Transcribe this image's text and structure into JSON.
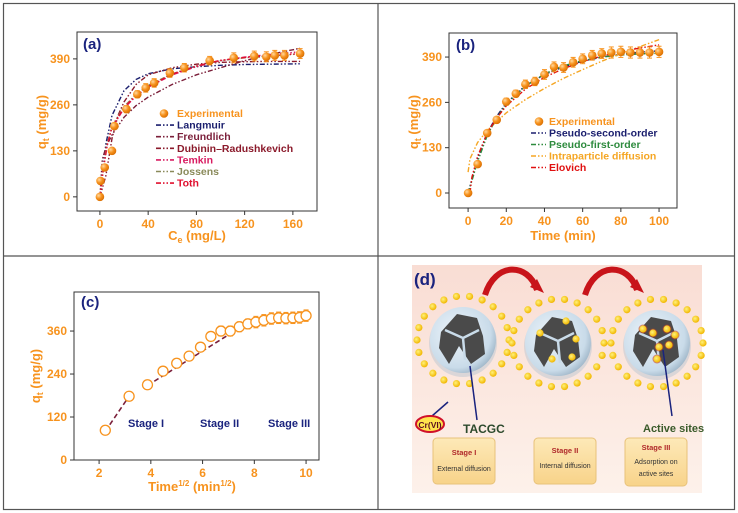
{
  "colors": {
    "orange": "#f7931e",
    "navy": "#1a237e"
  },
  "chart_data": [
    {
      "panel": "(a)",
      "type": "scatter",
      "xlabel_main": "C",
      "xlabel_sub": "e",
      "xlabel_unit": " (mg/L)",
      "ylabel_main": "q",
      "ylabel_sub": "t",
      "ylabel_unit": " (mg/g)",
      "xlim": [
        -19,
        180
      ],
      "ylim": [
        -40,
        466
      ],
      "xticks": [
        0,
        40,
        80,
        120,
        160
      ],
      "yticks": [
        0,
        130,
        260,
        390
      ],
      "experimental": {
        "name": "Experimental",
        "x": [
          0,
          0.5,
          4,
          10,
          12,
          22,
          31,
          38,
          45,
          58,
          70,
          91,
          111,
          128,
          138,
          145,
          153,
          166
        ],
        "y": [
          0,
          45,
          83,
          130,
          200,
          248,
          290,
          308,
          322,
          350,
          365,
          385,
          393,
          398,
          396,
          400,
          400,
          405
        ],
        "err": [
          4,
          6,
          6,
          8,
          8,
          10,
          10,
          12,
          12,
          12,
          12,
          12,
          14,
          14,
          14,
          14,
          14,
          14
        ]
      },
      "series": [
        {
          "name": "Langmuir",
          "color": "#1b1f6e",
          "x": [
            0,
            5,
            10,
            20,
            30,
            40,
            60,
            80,
            100,
            120,
            140,
            166
          ],
          "y": [
            0,
            150,
            230,
            300,
            332,
            348,
            362,
            368,
            372,
            374,
            375,
            376
          ]
        },
        {
          "name": "Freundlich",
          "color": "#7b1f3a",
          "x": [
            0,
            2,
            5,
            10,
            20,
            30,
            40,
            60,
            80,
            100,
            120,
            140,
            166
          ],
          "y": [
            0,
            105,
            140,
            175,
            225,
            258,
            282,
            318,
            345,
            365,
            385,
            402,
            420
          ]
        },
        {
          "name": "Dubinin–Radushkevich",
          "color": "#8b1a2b",
          "x": [
            0,
            5,
            10,
            15,
            20,
            30,
            40,
            60,
            80,
            100,
            120,
            140,
            166
          ],
          "y": [
            0,
            60,
            165,
            230,
            268,
            318,
            345,
            365,
            375,
            380,
            382,
            383,
            383
          ]
        },
        {
          "name": "Temkin",
          "color": "#d81b60",
          "x": [
            0,
            3,
            6,
            10,
            20,
            30,
            40,
            60,
            80,
            100,
            120,
            140,
            166
          ],
          "y": [
            0,
            90,
            150,
            195,
            250,
            285,
            310,
            345,
            368,
            385,
            395,
            402,
            410
          ]
        },
        {
          "name": "Jossens",
          "color": "#8a8a5a",
          "x": [
            0,
            3,
            6,
            10,
            20,
            30,
            40,
            60,
            80,
            100,
            120,
            140,
            166
          ],
          "y": [
            0,
            85,
            150,
            200,
            255,
            290,
            315,
            348,
            370,
            385,
            393,
            398,
            404
          ]
        },
        {
          "name": "Toth",
          "color": "#e0102f",
          "x": [
            0,
            3,
            6,
            10,
            20,
            30,
            40,
            60,
            80,
            100,
            120,
            140,
            166
          ],
          "y": [
            0,
            80,
            145,
            198,
            252,
            288,
            312,
            347,
            370,
            386,
            394,
            399,
            405
          ]
        }
      ]
    },
    {
      "panel": "(b)",
      "type": "scatter",
      "xlabel_main": "Time (min)",
      "ylabel_main": "q",
      "ylabel_sub": "t",
      "ylabel_unit": " (mg/g)",
      "xlim": [
        -10,
        109.4
      ],
      "ylim": [
        -43,
        459
      ],
      "xticks": [
        0,
        20,
        40,
        60,
        80,
        100
      ],
      "yticks": [
        0,
        130,
        260,
        390
      ],
      "experimental": {
        "name": "Experimental",
        "x": [
          0,
          5,
          10,
          15,
          20,
          25,
          30,
          35,
          40,
          45,
          50,
          55,
          60,
          65,
          70,
          75,
          80,
          85,
          90,
          95,
          100
        ],
        "y": [
          0,
          83,
          172,
          210,
          262,
          285,
          312,
          320,
          340,
          362,
          360,
          375,
          385,
          395,
          400,
          403,
          405,
          403,
          403,
          403,
          405
        ],
        "err": [
          4,
          6,
          8,
          8,
          10,
          10,
          12,
          12,
          14,
          14,
          14,
          14,
          14,
          14,
          14,
          16,
          16,
          16,
          16,
          16,
          16
        ]
      },
      "series": [
        {
          "name": "Pseudo-second-order",
          "color": "#1b1f6e",
          "x": [
            0,
            2,
            5,
            10,
            15,
            20,
            30,
            40,
            50,
            60,
            70,
            80,
            90,
            100
          ],
          "y": [
            0,
            40,
            100,
            172,
            220,
            258,
            308,
            340,
            362,
            378,
            390,
            398,
            404,
            408
          ]
        },
        {
          "name": "Pseudo-first-order",
          "color": "#2e8b3e",
          "x": [
            0,
            2,
            5,
            10,
            15,
            20,
            30,
            40,
            50,
            60,
            70,
            80,
            90,
            100
          ],
          "y": [
            0,
            35,
            90,
            165,
            215,
            255,
            306,
            342,
            365,
            380,
            390,
            396,
            399,
            401
          ]
        },
        {
          "name": "Intraparticle diffusion",
          "color": "#f5a623",
          "x": [
            0,
            1,
            5,
            10,
            20,
            30,
            40,
            50,
            60,
            70,
            80,
            90,
            100
          ],
          "y": [
            60,
            98,
            145,
            180,
            230,
            268,
            300,
            329,
            354,
            378,
            400,
            420,
            440
          ]
        },
        {
          "name": "Elovich",
          "color": "#e01010",
          "x": [
            1,
            2,
            5,
            10,
            15,
            20,
            30,
            40,
            50,
            60,
            70,
            80,
            90,
            100
          ],
          "y": [
            0,
            45,
            105,
            172,
            215,
            250,
            298,
            332,
            357,
            377,
            393,
            406,
            416,
            425
          ]
        }
      ]
    },
    {
      "panel": "(c)",
      "type": "scatter",
      "xlabel_main": "Time",
      "xlabel_sup": "1/2",
      "xlabel_unit": " (min",
      "xlabel_unit_sup": "1/2",
      "xlabel_close": ")",
      "ylabel_main": "q",
      "ylabel_sub": "t",
      "ylabel_unit": " (mg/g)",
      "xlim": [
        1.03,
        10.5
      ],
      "ylim": [
        0,
        469
      ],
      "xticks": [
        2,
        4,
        6,
        8,
        10
      ],
      "yticks": [
        0,
        120,
        240,
        360
      ],
      "experimental": {
        "name": "Experimental",
        "x": [
          2.24,
          3.16,
          3.87,
          4.47,
          5,
          5.48,
          5.92,
          6.32,
          6.71,
          7.07,
          7.42,
          7.75,
          8.06,
          8.37,
          8.66,
          8.94,
          9.22,
          9.49,
          9.75,
          10
        ],
        "y": [
          83,
          178,
          210,
          248,
          270,
          290,
          315,
          345,
          360,
          360,
          372,
          380,
          385,
          390,
          395,
          397,
          396,
          397,
          398,
          403
        ],
        "err": [
          3,
          4,
          5,
          8,
          10,
          10,
          10,
          12,
          14,
          14,
          14,
          14,
          16,
          16,
          16,
          16,
          16,
          16,
          16,
          16
        ]
      },
      "series": [
        {
          "name": "Stage I fit",
          "color": "#7b1f3a",
          "x": [
            2.24,
            3.16
          ],
          "y": [
            80,
            178
          ]
        },
        {
          "name": "Stage II fit",
          "color": "#7b1f3a",
          "x": [
            3.87,
            7.5
          ],
          "y": [
            208,
            372
          ]
        },
        {
          "name": "Stage III fit",
          "color": "#7b1f3a",
          "x": [
            7.5,
            10
          ],
          "y": [
            372,
            402
          ]
        }
      ],
      "annotations": [
        "Stage I",
        "Stage II",
        "Stage III"
      ]
    }
  ],
  "illustration": {
    "label": "(d)",
    "ion_label": "Cr(VI)",
    "adsorbent_label": "TACGC",
    "sites_label": "Active sites",
    "stages": [
      {
        "title": "Stage I",
        "desc": "External diffusion"
      },
      {
        "title": "Stage II",
        "desc": "Internal diffusion"
      },
      {
        "title": "Stage III",
        "desc": "Adsorption on",
        "desc2": "active sites"
      }
    ]
  }
}
